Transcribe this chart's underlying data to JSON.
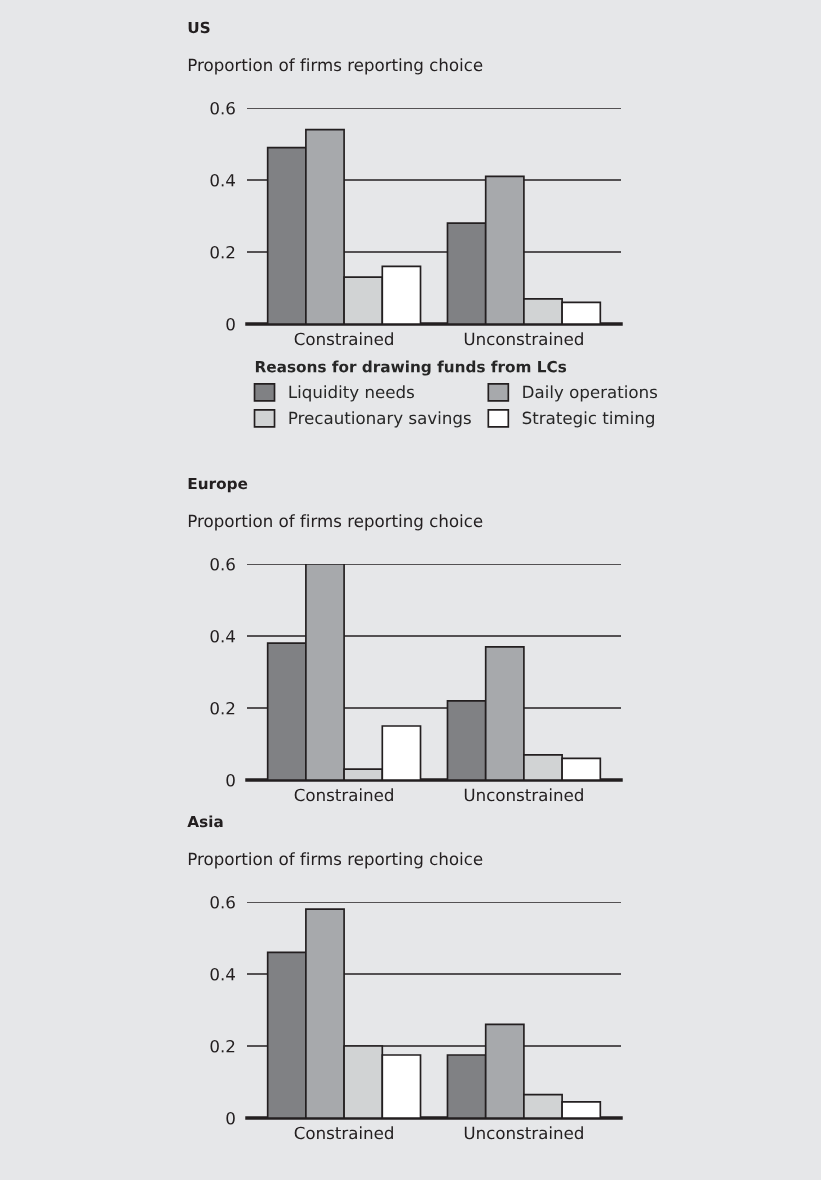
{
  "chart_data": [
    {
      "type": "bar",
      "title": "US",
      "subtitle": "Proportion of firms reporting choice",
      "categories": [
        "Constrained",
        "Unconstrained"
      ],
      "series": [
        {
          "name": "Liquidity needs",
          "color": "#808184",
          "values": [
            0.49,
            0.28
          ]
        },
        {
          "name": "Daily operations",
          "color": "#a7a9ac",
          "values": [
            0.54,
            0.41
          ]
        },
        {
          "name": "Precautionary savings",
          "color": "#d1d3d4",
          "values": [
            0.13,
            0.07
          ]
        },
        {
          "name": "Strategic timing",
          "color": "#ffffff",
          "values": [
            0.16,
            0.06
          ]
        }
      ],
      "legend_title": "Reasons for drawing funds from LCs",
      "legend": "bottom",
      "ylim": [
        0,
        0.6
      ],
      "yticks": [
        0,
        0.2,
        0.4,
        0.6
      ],
      "grid": "y"
    },
    {
      "type": "bar",
      "title": "Europe",
      "subtitle": "Proportion of firms reporting choice",
      "categories": [
        "Constrained",
        "Unconstrained"
      ],
      "series": [
        {
          "color": "#808184",
          "values": [
            0.38,
            0.22
          ]
        },
        {
          "color": "#a7a9ac",
          "values": [
            0.6,
            0.37
          ]
        },
        {
          "color": "#d1d3d4",
          "values": [
            0.03,
            0.07
          ]
        },
        {
          "color": "#ffffff",
          "values": [
            0.15,
            0.06
          ]
        }
      ],
      "ylim": [
        0,
        0.6
      ],
      "yticks": [
        0,
        0.2,
        0.4,
        0.6
      ],
      "grid": "y"
    },
    {
      "type": "bar",
      "title": "Asia",
      "subtitle": "Proportion of firms reporting choice",
      "categories": [
        "Constrained",
        "Unconstrained"
      ],
      "series": [
        {
          "color": "#808184",
          "values": [
            0.46,
            0.175
          ]
        },
        {
          "color": "#a7a9ac",
          "values": [
            0.58,
            0.26
          ]
        },
        {
          "color": "#d1d3d4",
          "values": [
            0.2,
            0.065
          ]
        },
        {
          "color": "#ffffff",
          "values": [
            0.175,
            0.045
          ]
        }
      ],
      "ylim": [
        0,
        0.6
      ],
      "yticks": [
        0,
        0.2,
        0.4,
        0.6
      ],
      "grid": "y"
    }
  ]
}
